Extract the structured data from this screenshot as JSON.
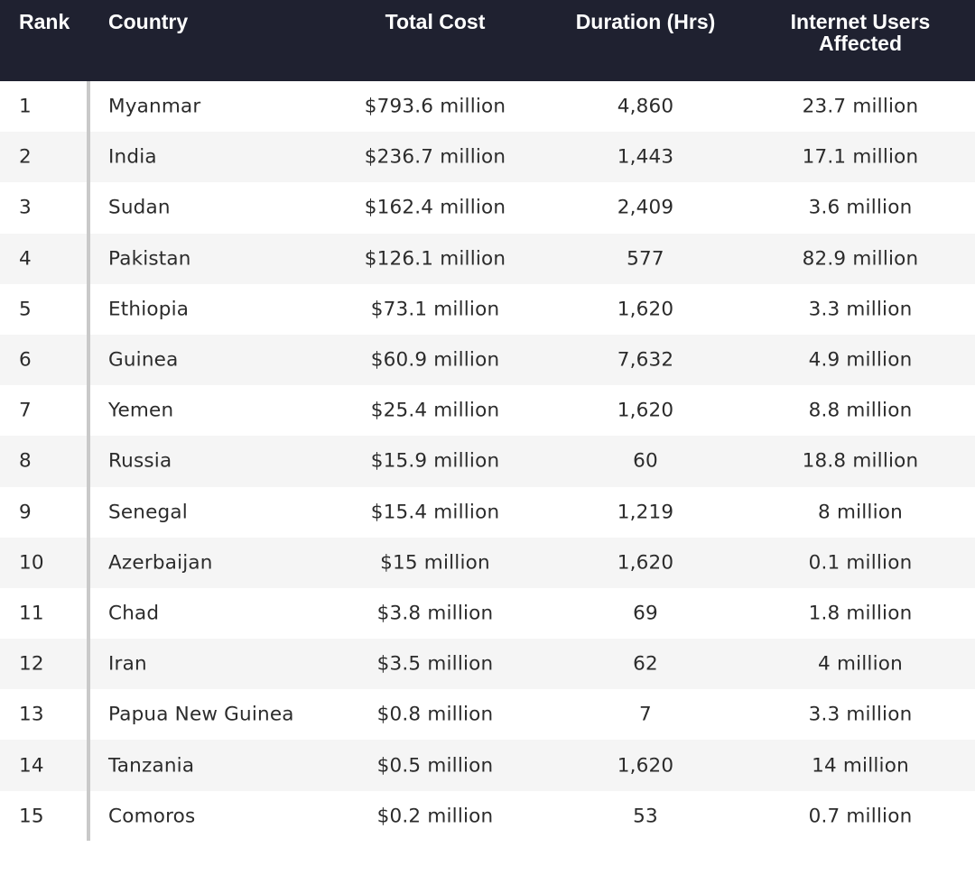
{
  "table": {
    "headers": {
      "rank": "Rank",
      "country": "Country",
      "total_cost": "Total Cost",
      "duration": "Duration (Hrs)",
      "users_line1": "Internet Users",
      "users_line2": "Affected"
    },
    "rows": [
      {
        "rank": "1",
        "country": "Myanmar",
        "total_cost": "$793.6 million",
        "duration": "4,860",
        "users": "23.7 million"
      },
      {
        "rank": "2",
        "country": "India",
        "total_cost": "$236.7 million",
        "duration": "1,443",
        "users": "17.1 million"
      },
      {
        "rank": "3",
        "country": "Sudan",
        "total_cost": "$162.4 million",
        "duration": "2,409",
        "users": "3.6 million"
      },
      {
        "rank": "4",
        "country": "Pakistan",
        "total_cost": "$126.1 million",
        "duration": "577",
        "users": "82.9 million"
      },
      {
        "rank": "5",
        "country": "Ethiopia",
        "total_cost": "$73.1 million",
        "duration": "1,620",
        "users": "3.3 million"
      },
      {
        "rank": "6",
        "country": "Guinea",
        "total_cost": "$60.9 million",
        "duration": "7,632",
        "users": "4.9 million"
      },
      {
        "rank": "7",
        "country": "Yemen",
        "total_cost": "$25.4 million",
        "duration": "1,620",
        "users": "8.8 million"
      },
      {
        "rank": "8",
        "country": "Russia",
        "total_cost": "$15.9 million",
        "duration": "60",
        "users": "18.8 million"
      },
      {
        "rank": "9",
        "country": "Senegal",
        "total_cost": "$15.4 million",
        "duration": "1,219",
        "users": "8 million"
      },
      {
        "rank": "10",
        "country": "Azerbaijan",
        "total_cost": "$15 million",
        "duration": "1,620",
        "users": "0.1 million"
      },
      {
        "rank": "11",
        "country": "Chad",
        "total_cost": "$3.8 million",
        "duration": "69",
        "users": "1.8 million"
      },
      {
        "rank": "12",
        "country": "Iran",
        "total_cost": "$3.5 million",
        "duration": "62",
        "users": "4 million"
      },
      {
        "rank": "13",
        "country": "Papua New Guinea",
        "total_cost": "$0.8 million",
        "duration": "7",
        "users": "3.3 million"
      },
      {
        "rank": "14",
        "country": "Tanzania",
        "total_cost": "$0.5 million",
        "duration": "1,620",
        "users": "14 million"
      },
      {
        "rank": "15",
        "country": "Comoros",
        "total_cost": "$0.2 million",
        "duration": "53",
        "users": "0.7 million"
      }
    ]
  },
  "colors": {
    "header_bg": "#1f2130",
    "header_text": "#ffffff",
    "row_alt_bg": "#f5f5f5",
    "row_bg": "#ffffff",
    "divider": "#c9c9c9",
    "text": "#2b2b2b"
  }
}
